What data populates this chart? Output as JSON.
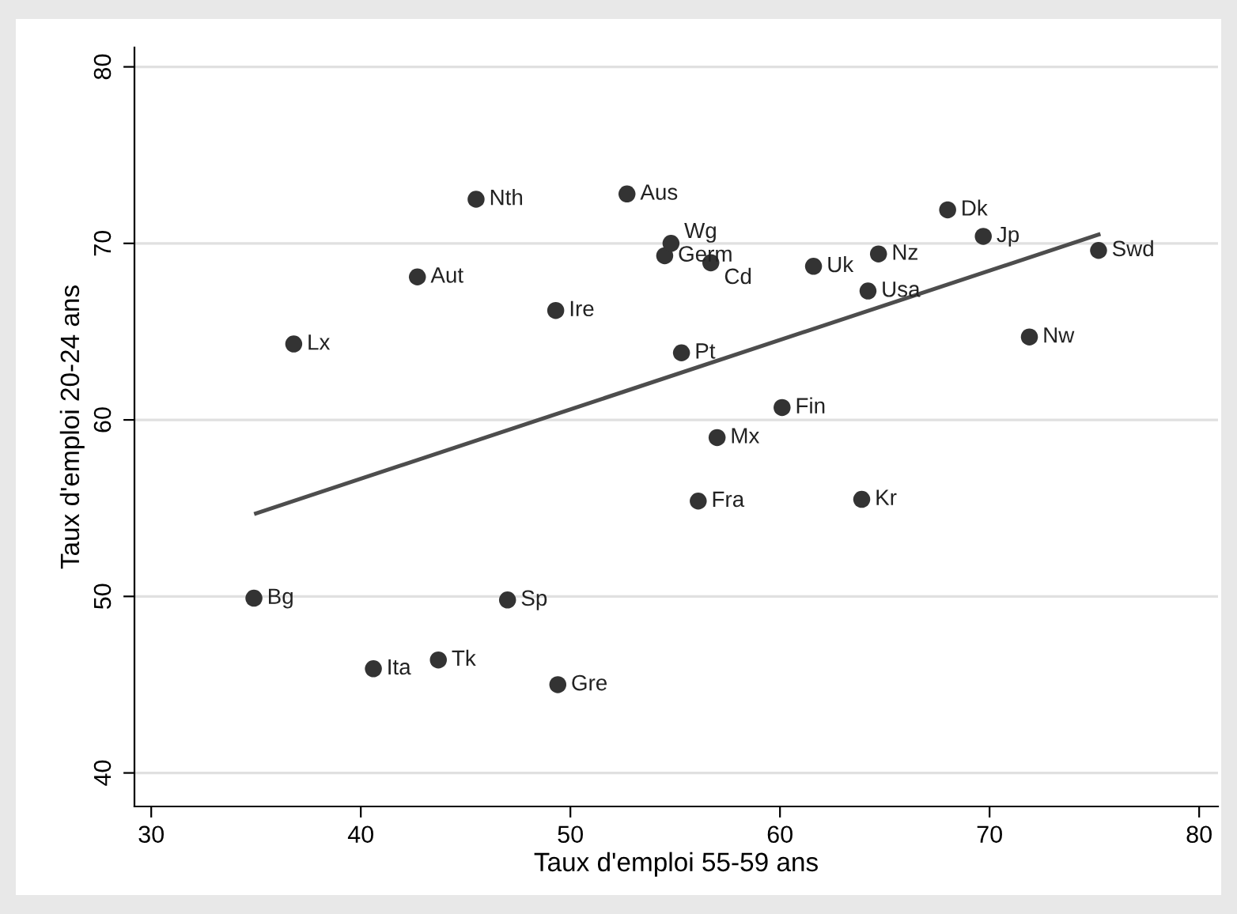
{
  "chart_data": {
    "type": "scatter",
    "xlabel": "Taux d'emploi 55-59 ans",
    "ylabel": "Taux d'emploi 20-24 ans",
    "xlim": [
      29.2,
      80.9
    ],
    "ylim": [
      38.1,
      81.1
    ],
    "xticks": [
      30,
      40,
      50,
      60,
      70,
      80
    ],
    "yticks": [
      40,
      50,
      60,
      70,
      80
    ],
    "grid": "y",
    "marker": "circle",
    "series": [
      {
        "color": "#333333",
        "x": [
          34.9,
          36.8,
          40.6,
          42.7,
          43.7,
          45.5,
          47.0,
          49.3,
          49.4,
          52.7,
          54.5,
          54.8,
          55.3,
          56.7,
          57.0,
          56.1,
          60.1,
          61.6,
          63.9,
          64.2,
          64.7,
          68.0,
          69.7,
          71.9,
          75.2
        ],
        "values": [
          49.9,
          64.3,
          45.9,
          68.1,
          46.4,
          72.5,
          49.8,
          66.2,
          45.0,
          72.8,
          69.3,
          70.0,
          63.8,
          68.9,
          59.0,
          55.4,
          60.7,
          68.7,
          55.5,
          67.3,
          69.4,
          71.9,
          70.4,
          64.7,
          69.6
        ]
      },
      {
        "type": "line",
        "color": "#4d4d4d",
        "marker": "none",
        "x": [
          35.0,
          75.2
        ],
        "values": [
          54.7,
          70.5
        ]
      }
    ],
    "annotations": [
      {
        "text": "Bg",
        "x": 34.9,
        "y": 49.9
      },
      {
        "text": "Lx",
        "x": 36.8,
        "y": 64.3
      },
      {
        "text": "Ita",
        "x": 40.6,
        "y": 45.9
      },
      {
        "text": "Aut",
        "x": 42.7,
        "y": 68.1
      },
      {
        "text": "Tk",
        "x": 43.7,
        "y": 46.4
      },
      {
        "text": "Nth",
        "x": 45.5,
        "y": 72.5
      },
      {
        "text": "Sp",
        "x": 47.0,
        "y": 49.8
      },
      {
        "text": "Ire",
        "x": 49.3,
        "y": 66.2
      },
      {
        "text": "Gre",
        "x": 49.4,
        "y": 45.0
      },
      {
        "text": "Aus",
        "x": 52.7,
        "y": 72.8
      },
      {
        "text": "Germ",
        "x": 54.5,
        "y": 69.3
      },
      {
        "text": "Wg",
        "x": 54.8,
        "y": 70.0
      },
      {
        "text": "Pt",
        "x": 55.3,
        "y": 63.8
      },
      {
        "text": "Cd",
        "x": 56.7,
        "y": 68.9
      },
      {
        "text": "Mx",
        "x": 57.0,
        "y": 59.0
      },
      {
        "text": "Fra",
        "x": 56.1,
        "y": 55.4
      },
      {
        "text": "Fin",
        "x": 60.1,
        "y": 60.7
      },
      {
        "text": "Uk",
        "x": 61.6,
        "y": 68.7
      },
      {
        "text": "Kr",
        "x": 63.9,
        "y": 55.5
      },
      {
        "text": "Usa",
        "x": 64.2,
        "y": 67.3
      },
      {
        "text": "Nz",
        "x": 64.7,
        "y": 69.4
      },
      {
        "text": "Dk",
        "x": 68.0,
        "y": 71.9
      },
      {
        "text": "Jp",
        "x": 69.7,
        "y": 70.4
      },
      {
        "text": "Nw",
        "x": 71.9,
        "y": 64.7
      },
      {
        "text": "Swd",
        "x": 75.2,
        "y": 69.6
      }
    ]
  }
}
